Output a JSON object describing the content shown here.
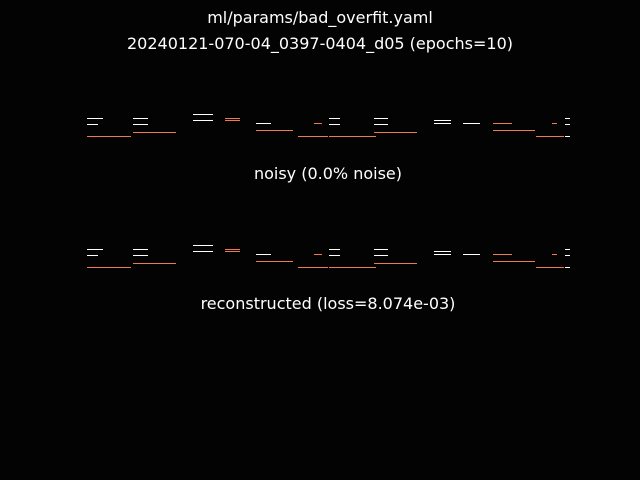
{
  "figure": {
    "title_line_1": "ml/params/bad_overfit.yaml",
    "title_line_2": "20240121-070-04_0397-0404_d05 (epochs=10)"
  },
  "panels": [
    {
      "id": "noisy",
      "caption": "noisy (0.0% noise)"
    },
    {
      "id": "reconstructed",
      "caption": "reconstructed (loss=8.074e-03)"
    }
  ],
  "colors": {
    "background": "#030304",
    "text": "#ffffff",
    "white_stroke": "#ffffff",
    "orange_stroke": "#f07850"
  }
}
